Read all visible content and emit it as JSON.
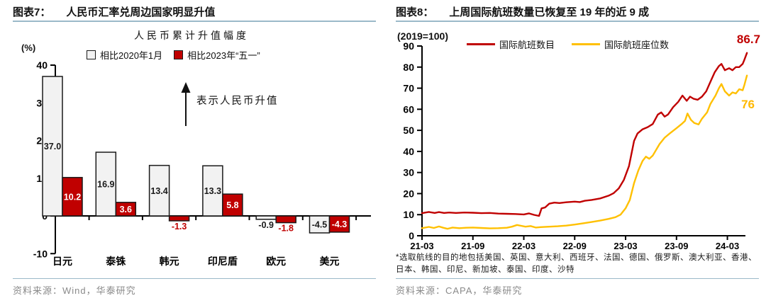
{
  "colors": {
    "red": "#c00000",
    "yellow": "#ffc000",
    "gray_bar_fill": "#f2f2f2",
    "bar_border": "#1a1a1a",
    "header_rule": "#9bb9c9",
    "source_gray": "#8a8a8a",
    "axis": "#000000"
  },
  "left_panel": {
    "figure_label": "图表7：",
    "title": "人民币汇率兑周边国家明显升值",
    "source": "资料来源：Wind，华泰研究"
  },
  "right_panel": {
    "figure_label": "图表8：",
    "title": "上周国际航班数量已恢复至 19 年的近 9 成",
    "footnote": "*选取航线的目的地包括美国、英国、意大利、西班牙、法国、德国、俄罗斯、澳大利亚、香港、日本、韩国、印尼、新加坡、泰国、印度、沙特",
    "source": "资料来源：CAPA，华泰研究"
  },
  "chart_data": [
    {
      "type": "bar",
      "title": "人民币累计升值幅度",
      "unit_label": "(%)",
      "annotation": "表示人民币升值",
      "categories": [
        "日元",
        "泰铢",
        "韩元",
        "印尼盾",
        "欧元",
        "美元"
      ],
      "series": [
        {
          "name": "相比2020年1月",
          "swatch": "gray",
          "color": "#f2f2f2",
          "values": [
            37.0,
            16.9,
            13.4,
            13.3,
            -0.9,
            -4.5
          ],
          "labels": [
            "37.0",
            "16.9",
            "13.4",
            "13.3",
            "-0.9",
            "-4.5"
          ]
        },
        {
          "name": "相比2023年“五一”",
          "swatch": "red",
          "color": "#c00000",
          "values": [
            10.2,
            3.6,
            -1.3,
            5.8,
            -1.8,
            -4.3
          ],
          "labels": [
            "10.2",
            "3.6",
            "-1.3",
            "5.8",
            "-1.8",
            "-4.3"
          ]
        }
      ],
      "ylim": [
        -10,
        40
      ],
      "yticks": [
        40,
        30,
        20,
        10,
        0,
        -10
      ],
      "grid": false,
      "legend_position": "top"
    },
    {
      "type": "line",
      "index_note": "(2019=100)",
      "x_ticks": [
        "21-03",
        "21-09",
        "22-03",
        "22-09",
        "23-03",
        "23-09",
        "24-03"
      ],
      "x_tick_months": [
        0,
        6,
        12,
        18,
        24,
        30,
        36
      ],
      "ylim": [
        0,
        90
      ],
      "yticks": [
        90,
        80,
        70,
        60,
        50,
        40,
        30,
        20,
        10,
        0
      ],
      "grid": false,
      "legend_position": "top",
      "series": [
        {
          "name": "国际航班数目",
          "color": "#c00000",
          "end_label": "86.7",
          "points": [
            [
              0,
              10.7
            ],
            [
              0.8,
              11.3
            ],
            [
              1.5,
              10.8
            ],
            [
              2,
              11.2
            ],
            [
              2.6,
              10.8
            ],
            [
              3.2,
              11.0
            ],
            [
              4,
              10.8
            ],
            [
              5,
              11.0
            ],
            [
              6,
              10.9
            ],
            [
              7,
              10.7
            ],
            [
              8,
              10.8
            ],
            [
              9,
              10.5
            ],
            [
              10,
              10.4
            ],
            [
              11,
              10.3
            ],
            [
              12,
              10.1
            ],
            [
              12.6,
              10.6
            ],
            [
              13.2,
              9.9
            ],
            [
              13.8,
              9.4
            ],
            [
              14.1,
              13.0
            ],
            [
              14.5,
              13.4
            ],
            [
              15,
              15.2
            ],
            [
              15.6,
              15.7
            ],
            [
              16.2,
              15.5
            ],
            [
              17,
              15.9
            ],
            [
              18,
              16.2
            ],
            [
              18.6,
              16.0
            ],
            [
              19.2,
              16.6
            ],
            [
              20,
              17.0
            ],
            [
              21,
              17.7
            ],
            [
              22,
              19.0
            ],
            [
              22.6,
              20.2
            ],
            [
              23.2,
              22.5
            ],
            [
              23.8,
              26.5
            ],
            [
              24.4,
              33.0
            ],
            [
              25,
              45.0
            ],
            [
              25.4,
              48.5
            ],
            [
              26,
              50.5
            ],
            [
              26.6,
              51.5
            ],
            [
              27.2,
              53.0
            ],
            [
              27.8,
              57.5
            ],
            [
              28.2,
              58.5
            ],
            [
              28.6,
              56.5
            ],
            [
              29,
              57.5
            ],
            [
              29.6,
              61.0
            ],
            [
              30.2,
              63.5
            ],
            [
              30.7,
              66.5
            ],
            [
              31.2,
              64.0
            ],
            [
              31.6,
              66.0
            ],
            [
              32,
              65.0
            ],
            [
              32.5,
              64.5
            ],
            [
              33,
              66.0
            ],
            [
              33.5,
              68.5
            ],
            [
              34,
              73.0
            ],
            [
              34.5,
              77.5
            ],
            [
              35,
              80.5
            ],
            [
              35.3,
              81.5
            ],
            [
              35.7,
              78.5
            ],
            [
              36.2,
              79.5
            ],
            [
              36.6,
              78.5
            ],
            [
              37,
              80.0
            ],
            [
              37.4,
              80.0
            ],
            [
              37.8,
              81.5
            ],
            [
              38,
              83.5
            ],
            [
              38.3,
              86.7
            ]
          ]
        },
        {
          "name": "国际航班座位数",
          "color": "#ffc000",
          "end_label": "76",
          "points": [
            [
              0,
              3.6
            ],
            [
              0.8,
              4.2
            ],
            [
              1.4,
              3.7
            ],
            [
              2,
              4.4
            ],
            [
              2.5,
              3.8
            ],
            [
              3,
              3.3
            ],
            [
              3.6,
              3.9
            ],
            [
              4.4,
              3.6
            ],
            [
              5.2,
              3.8
            ],
            [
              6,
              3.9
            ],
            [
              7,
              3.7
            ],
            [
              8,
              3.5
            ],
            [
              9,
              3.6
            ],
            [
              10,
              3.8
            ],
            [
              10.6,
              4.3
            ],
            [
              11.2,
              5.1
            ],
            [
              11.7,
              4.7
            ],
            [
              12.2,
              4.3
            ],
            [
              12.8,
              4.6
            ],
            [
              13.4,
              3.9
            ],
            [
              14,
              4.1
            ],
            [
              15,
              4.3
            ],
            [
              16,
              4.5
            ],
            [
              17,
              4.8
            ],
            [
              18,
              5.3
            ],
            [
              19,
              5.9
            ],
            [
              20,
              6.5
            ],
            [
              21,
              7.2
            ],
            [
              22,
              8.0
            ],
            [
              22.8,
              8.8
            ],
            [
              23.4,
              10.0
            ],
            [
              24,
              13.0
            ],
            [
              24.5,
              17.0
            ],
            [
              25,
              25.0
            ],
            [
              25.5,
              31.0
            ],
            [
              26,
              35.5
            ],
            [
              26.4,
              37.5
            ],
            [
              26.8,
              36.5
            ],
            [
              27.2,
              38.0
            ],
            [
              28,
              43.5
            ],
            [
              28.6,
              46.5
            ],
            [
              29.2,
              48.5
            ],
            [
              30,
              51.0
            ],
            [
              30.6,
              53.0
            ],
            [
              31,
              54.5
            ],
            [
              31.3,
              58.0
            ],
            [
              31.7,
              55.0
            ],
            [
              32.1,
              53.5
            ],
            [
              32.6,
              52.8
            ],
            [
              33,
              55.5
            ],
            [
              33.6,
              58.5
            ],
            [
              34,
              62.5
            ],
            [
              34.6,
              66.5
            ],
            [
              35,
              70.0
            ],
            [
              35.3,
              72.0
            ],
            [
              35.7,
              68.5
            ],
            [
              36.2,
              66.5
            ],
            [
              36.6,
              68.0
            ],
            [
              37,
              67.5
            ],
            [
              37.4,
              69.5
            ],
            [
              37.8,
              69.0
            ],
            [
              38,
              71.5
            ],
            [
              38.3,
              76.0
            ]
          ]
        }
      ]
    }
  ]
}
